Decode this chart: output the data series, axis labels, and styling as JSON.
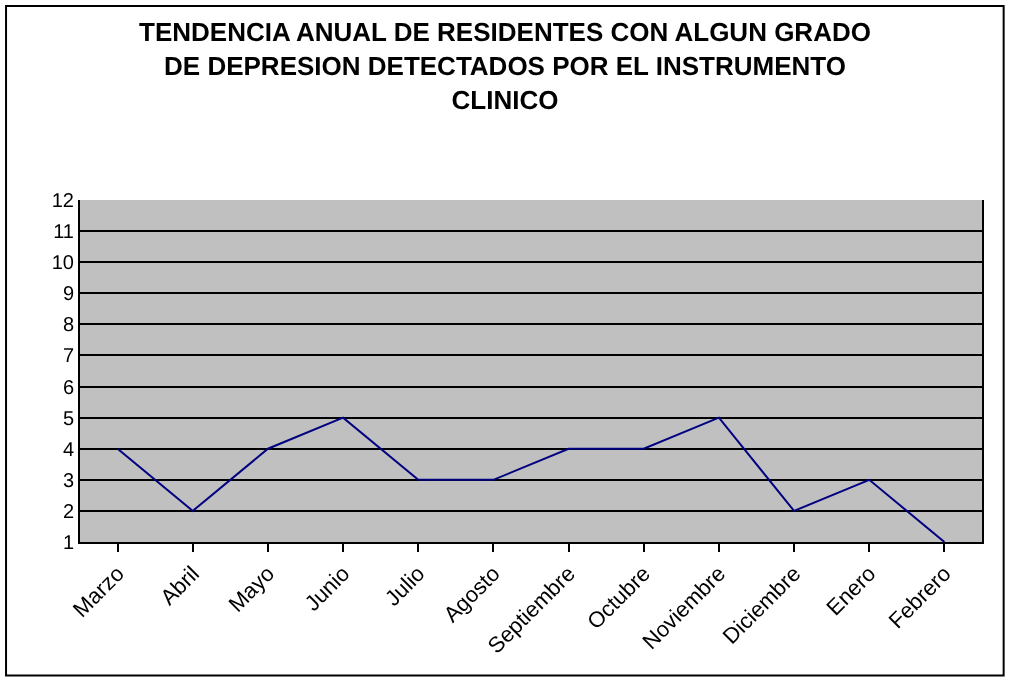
{
  "chart_data": {
    "type": "line",
    "title": "TENDENCIA ANUAL DE RESIDENTES CON ALGUN GRADO\nDE DEPRESION DETECTADOS POR EL INSTRUMENTO\nCLINICO",
    "categories": [
      "Marzo",
      "Abril",
      "Mayo",
      "Junio",
      "Julio",
      "Agosto",
      "Septiembre",
      "Octubre",
      "Noviembre",
      "Diciembre",
      "Enero",
      "Febrero"
    ],
    "series": [
      {
        "color": "#000080",
        "values": [
          4,
          2,
          4,
          5,
          3,
          3,
          4,
          4,
          5,
          2,
          3,
          1
        ]
      }
    ],
    "ylim": [
      1,
      12
    ],
    "yticks": [
      1,
      2,
      3,
      4,
      5,
      6,
      7,
      8,
      9,
      10,
      11,
      12
    ],
    "grid": "y",
    "marker": "none",
    "line_style": "solid"
  }
}
